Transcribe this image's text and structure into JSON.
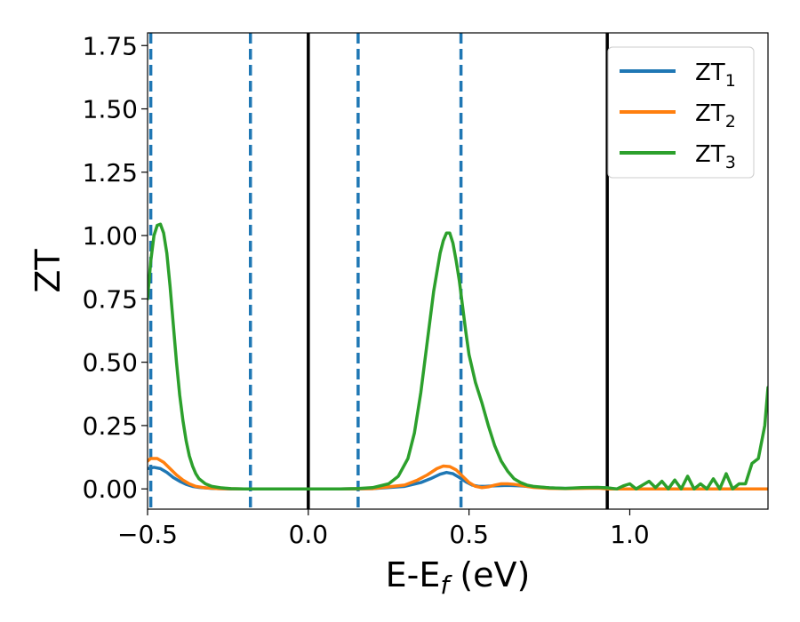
{
  "chart_data": {
    "type": "line",
    "xlabel": "E-E",
    "xlabel_sub": "f",
    "xlabel_unit": " (eV)",
    "ylabel": "ZT",
    "xlim": [
      -0.5,
      1.43
    ],
    "ylim": [
      -0.08,
      1.8
    ],
    "x_ticks": [
      -0.5,
      0.0,
      0.5,
      1.0
    ],
    "x_tick_labels": [
      "−0.5",
      "0.0",
      "0.5",
      "1.0"
    ],
    "y_ticks": [
      0.0,
      0.25,
      0.5,
      0.75,
      1.0,
      1.25,
      1.5,
      1.75
    ],
    "y_tick_labels": [
      "0.00",
      "0.25",
      "0.50",
      "0.75",
      "1.00",
      "1.25",
      "1.50",
      "1.75"
    ],
    "grid": false,
    "legend_position": "top-right",
    "vlines_solid": [
      0.0,
      0.93
    ],
    "vlines_dashed": [
      -0.49,
      -0.18,
      0.155,
      0.475
    ],
    "series": [
      {
        "name": "ZT",
        "sub": "1",
        "color": "#1f77b4",
        "x": [
          -0.5,
          -0.48,
          -0.46,
          -0.44,
          -0.42,
          -0.4,
          -0.38,
          -0.36,
          -0.34,
          -0.3,
          -0.25,
          -0.2,
          -0.1,
          0.0,
          0.1,
          0.2,
          0.3,
          0.35,
          0.38,
          0.41,
          0.43,
          0.45,
          0.47,
          0.49,
          0.51,
          0.53,
          0.55,
          0.58,
          0.62,
          0.66,
          0.7,
          0.75,
          0.8,
          0.85,
          0.9,
          0.93,
          0.95,
          1.0,
          1.1,
          1.2,
          1.3,
          1.4,
          1.43
        ],
        "y": [
          0.08,
          0.085,
          0.08,
          0.065,
          0.045,
          0.03,
          0.018,
          0.01,
          0.006,
          0.002,
          0.0,
          0.0,
          0.0,
          0.0,
          0.0,
          0.001,
          0.01,
          0.025,
          0.04,
          0.058,
          0.065,
          0.06,
          0.045,
          0.028,
          0.015,
          0.01,
          0.01,
          0.012,
          0.014,
          0.012,
          0.008,
          0.004,
          0.002,
          0.003,
          0.005,
          0.004,
          0.0,
          0.0,
          0.0,
          0.0,
          0.0,
          0.0,
          0.0
        ]
      },
      {
        "name": "ZT",
        "sub": "2",
        "color": "#ff7f0e",
        "x": [
          -0.5,
          -0.49,
          -0.47,
          -0.45,
          -0.43,
          -0.41,
          -0.39,
          -0.37,
          -0.35,
          -0.32,
          -0.28,
          -0.2,
          -0.1,
          0.0,
          0.1,
          0.2,
          0.3,
          0.34,
          0.37,
          0.4,
          0.42,
          0.44,
          0.46,
          0.48,
          0.5,
          0.52,
          0.54,
          0.56,
          0.58,
          0.6,
          0.62,
          0.64,
          0.67,
          0.7,
          0.75,
          0.8,
          0.85,
          0.9,
          0.93,
          1.0,
          1.1,
          1.2,
          1.3,
          1.4,
          1.43
        ],
        "y": [
          0.11,
          0.12,
          0.12,
          0.105,
          0.08,
          0.055,
          0.035,
          0.02,
          0.01,
          0.004,
          0.001,
          0.0,
          0.0,
          0.0,
          0.0,
          0.001,
          0.015,
          0.035,
          0.055,
          0.08,
          0.09,
          0.088,
          0.075,
          0.05,
          0.025,
          0.01,
          0.005,
          0.008,
          0.015,
          0.02,
          0.02,
          0.018,
          0.012,
          0.006,
          0.002,
          0.001,
          0.002,
          0.003,
          0.0,
          0.0,
          0.0,
          0.0,
          0.0,
          0.0,
          0.0
        ]
      },
      {
        "name": "ZT",
        "sub": "3",
        "color": "#2ca02c",
        "x": [
          -0.5,
          -0.49,
          -0.48,
          -0.47,
          -0.46,
          -0.45,
          -0.44,
          -0.43,
          -0.42,
          -0.41,
          -0.4,
          -0.39,
          -0.38,
          -0.37,
          -0.36,
          -0.35,
          -0.34,
          -0.32,
          -0.3,
          -0.27,
          -0.24,
          -0.2,
          -0.15,
          -0.1,
          0.0,
          0.1,
          0.15,
          0.2,
          0.25,
          0.28,
          0.31,
          0.33,
          0.35,
          0.37,
          0.39,
          0.41,
          0.42,
          0.43,
          0.44,
          0.45,
          0.46,
          0.47,
          0.48,
          0.49,
          0.5,
          0.52,
          0.54,
          0.56,
          0.58,
          0.6,
          0.62,
          0.64,
          0.66,
          0.68,
          0.7,
          0.75,
          0.8,
          0.85,
          0.9,
          0.93,
          0.96,
          0.98,
          1.0,
          1.02,
          1.04,
          1.06,
          1.08,
          1.1,
          1.12,
          1.14,
          1.16,
          1.18,
          1.2,
          1.22,
          1.24,
          1.26,
          1.28,
          1.3,
          1.32,
          1.34,
          1.36,
          1.38,
          1.4,
          1.42,
          1.43
        ],
        "y": [
          0.75,
          0.9,
          1.0,
          1.04,
          1.045,
          1.01,
          0.93,
          0.8,
          0.65,
          0.5,
          0.37,
          0.27,
          0.19,
          0.13,
          0.09,
          0.06,
          0.04,
          0.02,
          0.01,
          0.004,
          0.001,
          0.0,
          0.0,
          0.0,
          0.0,
          0.0,
          0.001,
          0.005,
          0.02,
          0.05,
          0.12,
          0.22,
          0.38,
          0.58,
          0.78,
          0.93,
          0.98,
          1.01,
          1.01,
          0.97,
          0.9,
          0.82,
          0.72,
          0.62,
          0.53,
          0.42,
          0.34,
          0.25,
          0.17,
          0.11,
          0.07,
          0.04,
          0.025,
          0.015,
          0.01,
          0.004,
          0.002,
          0.005,
          0.006,
          0.004,
          0.0,
          0.012,
          0.02,
          0.0,
          0.015,
          0.03,
          0.005,
          0.03,
          0.0,
          0.035,
          0.0,
          0.05,
          0.0,
          0.02,
          0.0,
          0.04,
          0.0,
          0.06,
          0.0,
          0.02,
          0.02,
          0.1,
          0.12,
          0.25,
          0.4
        ]
      }
    ]
  }
}
